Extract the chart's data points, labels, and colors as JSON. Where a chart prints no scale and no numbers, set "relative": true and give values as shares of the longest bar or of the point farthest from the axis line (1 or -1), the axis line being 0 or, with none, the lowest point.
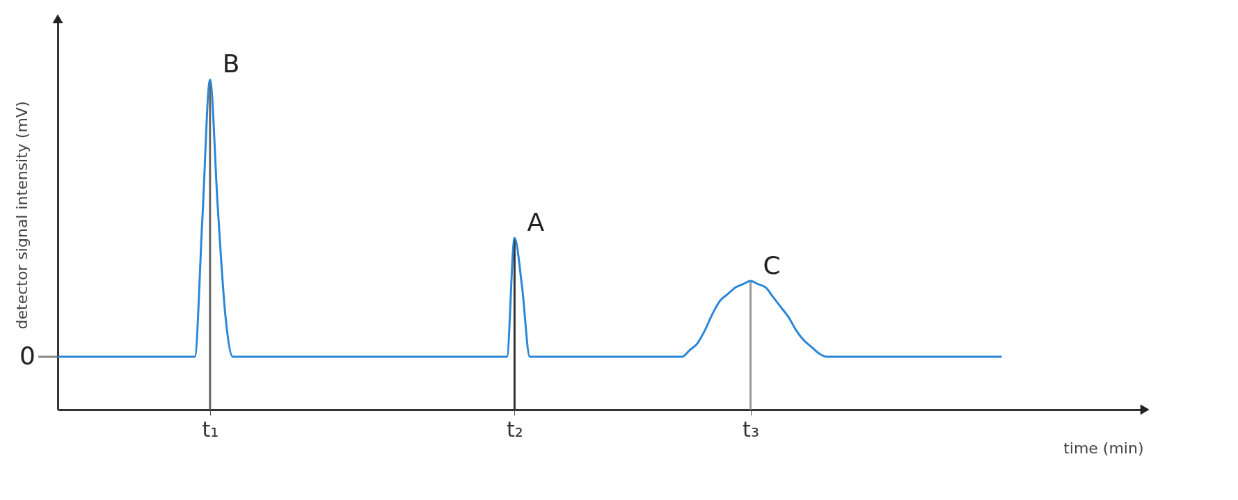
{
  "chart_data": {
    "type": "line",
    "relative": true,
    "xlabel": "time (min)",
    "ylabel": "detector signal intensity (mV)",
    "categories": [
      null,
      null,
      null,
      null,
      null,
      null,
      null,
      null,
      null,
      null,
      null,
      null,
      null,
      null,
      null,
      null,
      null,
      null,
      null,
      null,
      "t₁",
      null,
      null,
      null,
      null,
      null,
      null,
      null,
      null,
      null,
      null,
      null,
      null,
      null,
      null,
      null,
      null,
      null,
      null,
      null,
      null,
      null,
      null,
      null,
      null,
      null,
      null,
      null,
      null,
      null,
      null,
      null,
      null,
      null,
      null,
      null,
      null,
      null,
      null,
      null,
      "t₂",
      null,
      null,
      null,
      null,
      null,
      null,
      null,
      null,
      null,
      null,
      null,
      null,
      null,
      null,
      null,
      null,
      null,
      null,
      null,
      null,
      null,
      null,
      null,
      null,
      null,
      null,
      null,
      null,
      null,
      null,
      "t₃",
      null,
      null,
      null,
      null,
      null,
      null,
      null,
      null,
      null,
      null,
      null,
      null,
      null,
      null,
      null,
      null,
      null,
      null,
      null,
      null,
      null,
      null,
      null,
      null,
      null,
      null,
      null,
      null,
      null,
      null,
      null,
      null,
      null
    ],
    "series": [
      {
        "color": "#2b86d8",
        "values": [
          0.16,
          0.16,
          0.16,
          0.16,
          0.16,
          0.16,
          0.16,
          0.16,
          0.16,
          0.16,
          0.16,
          0.16,
          0.16,
          0.16,
          0.16,
          0.16,
          0.16,
          0.16,
          0.16,
          0.58,
          1,
          0.62,
          0.29,
          0.16,
          0.16,
          0.16,
          0.16,
          0.16,
          0.16,
          0.16,
          0.16,
          0.16,
          0.16,
          0.16,
          0.16,
          0.16,
          0.16,
          0.16,
          0.16,
          0.16,
          0.16,
          0.16,
          0.16,
          0.16,
          0.16,
          0.16,
          0.16,
          0.16,
          0.16,
          0.16,
          0.16,
          0.16,
          0.16,
          0.16,
          0.16,
          0.16,
          0.16,
          0.16,
          0.16,
          0.16,
          0.52,
          0.37,
          0.16,
          0.16,
          0.16,
          0.16,
          0.16,
          0.16,
          0.16,
          0.16,
          0.16,
          0.16,
          0.16,
          0.16,
          0.16,
          0.16,
          0.16,
          0.16,
          0.16,
          0.16,
          0.16,
          0.16,
          0.16,
          0.18,
          0.2,
          0.24,
          0.29,
          0.33,
          0.35,
          0.37,
          0.38,
          0.39,
          0.38,
          0.37,
          0.34,
          0.31,
          0.28,
          0.24,
          0.21,
          0.19,
          0.17,
          0.16,
          0.16,
          0.16,
          0.16,
          0.16,
          0.16,
          0.16,
          0.16,
          0.16,
          0.16,
          0.16,
          0.16,
          0.16,
          0.16,
          0.16,
          0.16,
          0.16,
          0.16,
          0.16,
          0.16,
          0.16,
          0.16,
          0.16,
          0.16
        ]
      }
    ],
    "ref_lines": [
      {
        "axis": "x",
        "value": "t₁",
        "color": "#666666"
      },
      {
        "axis": "x",
        "value": "t₂",
        "color": "#333333"
      },
      {
        "axis": "x",
        "value": "t₃",
        "color": "#999999"
      }
    ],
    "annotations": [
      {
        "text": "B",
        "x": "t₁",
        "y": 1
      },
      {
        "text": "A",
        "x": "t₂",
        "y": 0.52
      },
      {
        "text": "C",
        "x": "t₃",
        "y": 0.39
      },
      "0"
    ],
    "grid": false,
    "marker": "none",
    "line_style": "solid"
  }
}
